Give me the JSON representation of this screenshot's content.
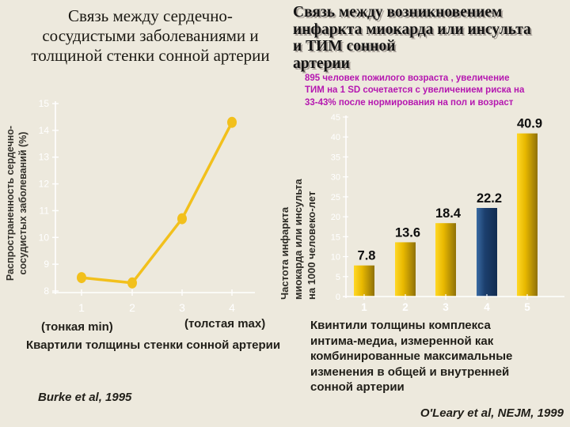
{
  "slide": {
    "background_color": "#EDE9DD"
  },
  "colors": {
    "accent_gold": "#F2C01C",
    "bar_gold_light": "#FFD826",
    "bar_gold_mid": "#E8B800",
    "bar_gold_dark": "#8F7108",
    "bar_navy_light": "#3A6BA3",
    "bar_navy_mid": "#1C3F6E",
    "bar_navy_dark": "#122C50",
    "axis_white": "#FFFFFF",
    "magenta_note": "#B517B0",
    "text_dark": "#1E1E1A"
  },
  "chart_data": [
    {
      "type": "line",
      "title": "Связь между сердечно-\nсосудистыми заболеваниями и\nтолщиной стенки сонной артерии",
      "x": [
        1,
        2,
        3,
        4
      ],
      "xtick_labels": [
        "1",
        "2",
        "3",
        "4"
      ],
      "values": [
        8.5,
        8.3,
        10.7,
        14.3
      ],
      "ylim": [
        8,
        15
      ],
      "ytick_step": 1,
      "ytick_labels": [
        "8",
        "9",
        "10",
        "11",
        "12",
        "13",
        "14",
        "15"
      ],
      "grid": false,
      "legend": null,
      "ylabel": "Распространенность сердечно-\nсосудистых заболеваний (%)",
      "x_annotation_min": "(тонкая min)",
      "x_annotation_max": "(толстая max)",
      "xlabel": "Квартили толщины стенки сонной артерии",
      "citation": "Burke et al, 1995"
    },
    {
      "type": "bar",
      "title": "Связь между возникновением\nинфаркта миокарда или инсульта\nи ТИМ сонной\nартерии",
      "subtitle": "895 человек пожилого возраста , увеличение\nТИМ на 1 SD сочетается с увеличением риска на\n33-43% после нормирования на пол и возраст",
      "categories": [
        "1",
        "2",
        "3",
        "4",
        "5"
      ],
      "values": [
        7.8,
        13.6,
        18.4,
        22.2,
        40.9
      ],
      "data_labels": [
        "7.8",
        "13.6",
        "18.4",
        "22.2",
        "40.9"
      ],
      "bar_color_names": [
        "gold",
        "gold",
        "gold",
        "navy",
        "gold"
      ],
      "ylim": [
        0,
        45
      ],
      "ytick_step": 5,
      "ytick_labels": [
        "0",
        "5",
        "10",
        "15",
        "20",
        "25",
        "30",
        "35",
        "40",
        "45"
      ],
      "grid": false,
      "legend": null,
      "ylabel": "Частота инфаркта\nмиокарда или инсульта\nна 1000 человеко-лет",
      "xlabel": "Квинтили толщины комплекса\nинтима-медиа, измеренной как\nкомбинированные максимальные\nизменения в общей и внутренней\nсонной артерии",
      "citation": "O'Leary et al, NEJM, 1999"
    }
  ]
}
